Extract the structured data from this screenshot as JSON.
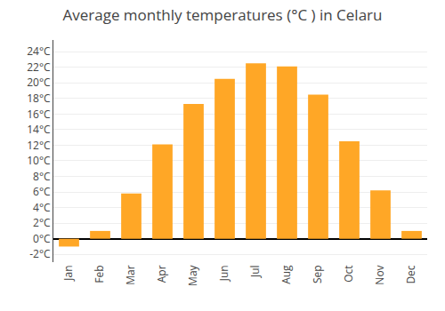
{
  "chart_data": {
    "type": "bar",
    "title": "Average monthly temperatures (°C ) in Celaru",
    "categories": [
      "Jan",
      "Feb",
      "Mar",
      "Apr",
      "May",
      "Jun",
      "Jul",
      "Aug",
      "Sep",
      "Oct",
      "Nov",
      "Dec"
    ],
    "values": [
      -1.0,
      1.0,
      5.8,
      12.1,
      17.3,
      20.5,
      22.5,
      22.1,
      18.5,
      12.5,
      6.2,
      1.0
    ],
    "color": "#FFA726",
    "ylim": [
      -3.0,
      25.5
    ],
    "yticks": [
      {
        "value": -2,
        "label": "-2°C"
      },
      {
        "value": 0,
        "label": "0°C"
      },
      {
        "value": 2,
        "label": "2°C"
      },
      {
        "value": 4,
        "label": "4°C"
      },
      {
        "value": 6,
        "label": "6°C"
      },
      {
        "value": 8,
        "label": "8°C"
      },
      {
        "value": 10,
        "label": "10°C"
      },
      {
        "value": 12,
        "label": "12°C"
      },
      {
        "value": 14,
        "label": "14°C"
      },
      {
        "value": 16,
        "label": "16°C"
      },
      {
        "value": 18,
        "label": "18°C"
      },
      {
        "value": 20,
        "label": "20°C"
      },
      {
        "value": 22,
        "label": "22°C"
      },
      {
        "value": 24,
        "label": "24°C"
      }
    ],
    "grid": true
  }
}
